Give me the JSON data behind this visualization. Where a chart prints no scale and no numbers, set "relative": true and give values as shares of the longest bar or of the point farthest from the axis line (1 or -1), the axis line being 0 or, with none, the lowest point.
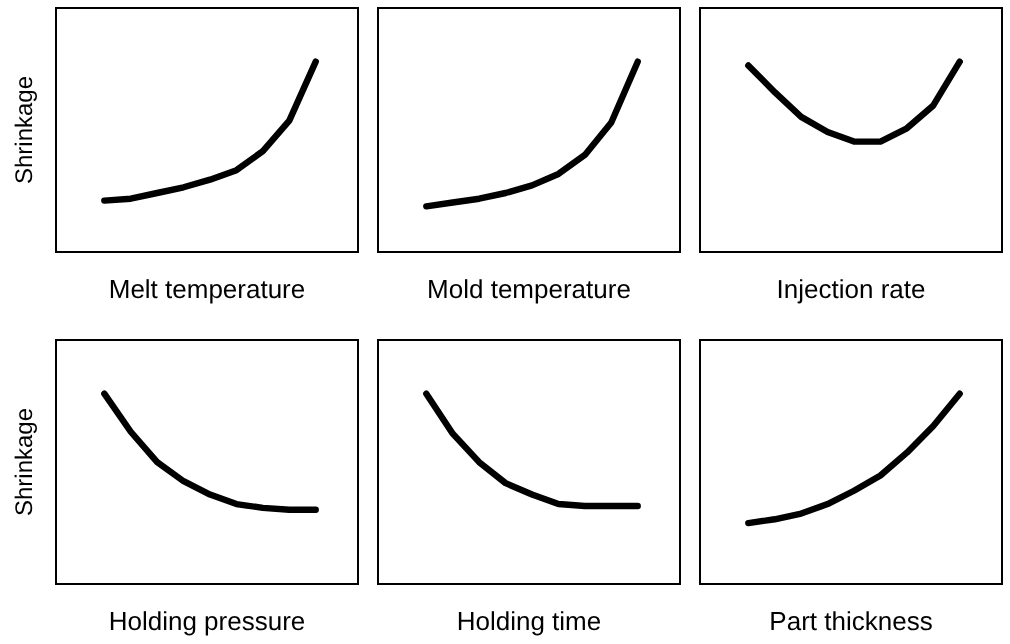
{
  "chart_data": [
    {
      "type": "line",
      "relative": true,
      "xlabel": "Melt temperature",
      "ylabel": "Shrinkage",
      "categories": [
        null,
        null,
        null,
        null,
        null,
        null,
        null,
        null,
        null
      ],
      "series": [
        {
          "color": "#000000",
          "values": [
            0.27,
            0.28,
            0.31,
            0.34,
            0.38,
            0.43,
            0.53,
            0.69,
            1
          ]
        }
      ]
    },
    {
      "type": "line",
      "relative": true,
      "xlabel": "Mold temperature",
      "categories": [
        null,
        null,
        null,
        null,
        null,
        null,
        null,
        null,
        null
      ],
      "series": [
        {
          "color": "#000000",
          "values": [
            0.24,
            0.26,
            0.28,
            0.31,
            0.35,
            0.41,
            0.51,
            0.68,
            1
          ]
        }
      ]
    },
    {
      "type": "line",
      "relative": true,
      "xlabel": "Injection rate",
      "categories": [
        null,
        null,
        null,
        null,
        null,
        null,
        null,
        null,
        null
      ],
      "series": [
        {
          "color": "#000000",
          "values": [
            0.98,
            0.84,
            0.71,
            0.63,
            0.58,
            0.58,
            0.65,
            0.77,
            1
          ]
        }
      ]
    },
    {
      "type": "line",
      "relative": true,
      "xlabel": "Holding pressure",
      "ylabel": "Shrinkage",
      "categories": [
        null,
        null,
        null,
        null,
        null,
        null,
        null,
        null,
        null
      ],
      "series": [
        {
          "color": "#000000",
          "values": [
            1,
            0.8,
            0.64,
            0.54,
            0.47,
            0.42,
            0.4,
            0.39,
            0.39
          ]
        }
      ]
    },
    {
      "type": "line",
      "relative": true,
      "xlabel": "Holding time",
      "categories": [
        null,
        null,
        null,
        null,
        null,
        null,
        null,
        null,
        null
      ],
      "series": [
        {
          "color": "#000000",
          "values": [
            1,
            0.79,
            0.64,
            0.53,
            0.47,
            0.42,
            0.41,
            0.41,
            0.41
          ]
        }
      ]
    },
    {
      "type": "line",
      "relative": true,
      "xlabel": "Part thickness",
      "categories": [
        null,
        null,
        null,
        null,
        null,
        null,
        null,
        null,
        null
      ],
      "series": [
        {
          "color": "#000000",
          "values": [
            0.32,
            0.34,
            0.37,
            0.42,
            0.49,
            0.57,
            0.69,
            0.83,
            1
          ]
        }
      ]
    }
  ]
}
